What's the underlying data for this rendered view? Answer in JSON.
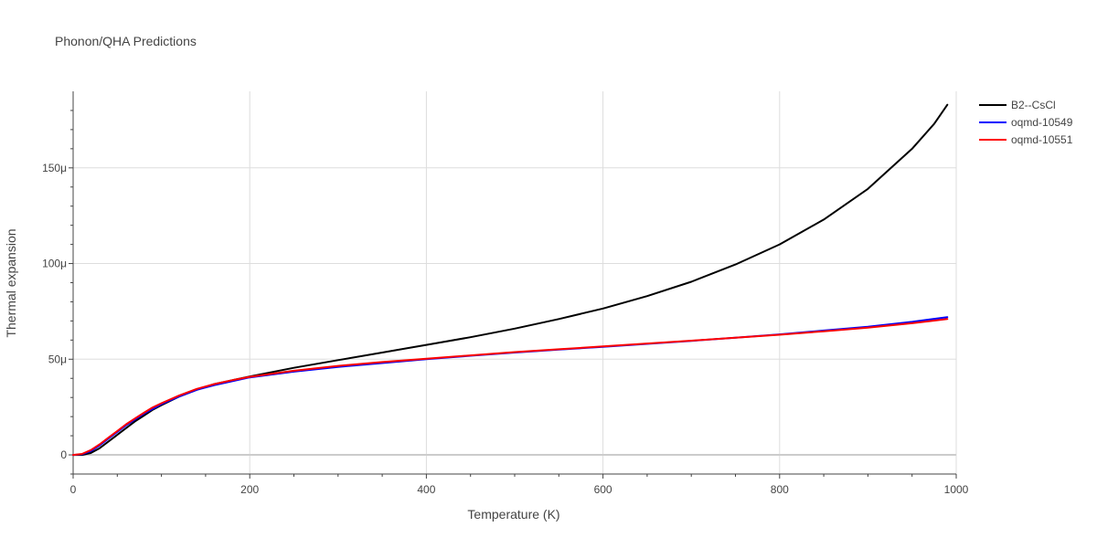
{
  "chart_data": {
    "type": "line",
    "title": "Phonon/QHA Predictions",
    "xlabel": "Temperature (K)",
    "ylabel": "Thermal expansion",
    "xlim": [
      0,
      1000
    ],
    "ylim": [
      -10,
      190
    ],
    "x_ticks": [
      0,
      200,
      400,
      600,
      800,
      1000
    ],
    "x_tick_labels": [
      "0",
      "200",
      "400",
      "600",
      "800",
      "1000"
    ],
    "y_ticks": [
      0,
      50,
      100,
      150
    ],
    "y_tick_labels": [
      "0",
      "50μ",
      "100μ",
      "150μ"
    ],
    "legend_position": "top-right",
    "series": [
      {
        "name": "B2--CsCl",
        "color": "#000000",
        "x": [
          0,
          10,
          20,
          30,
          40,
          50,
          60,
          70,
          80,
          90,
          100,
          120,
          140,
          160,
          180,
          200,
          250,
          300,
          350,
          400,
          450,
          500,
          550,
          600,
          650,
          700,
          750,
          800,
          850,
          900,
          950,
          975,
          990
        ],
        "y": [
          0,
          0,
          1,
          3.5,
          7,
          10.5,
          14,
          17.5,
          20.5,
          23.5,
          26,
          30.5,
          34,
          37,
          39,
          41,
          45.5,
          49.5,
          53.5,
          57.5,
          61.5,
          66,
          71,
          76.5,
          83,
          90.5,
          99.5,
          110,
          123,
          139,
          160,
          173,
          183
        ]
      },
      {
        "name": "oqmd-10549",
        "color": "#0000ff",
        "x": [
          0,
          10,
          20,
          30,
          40,
          50,
          60,
          70,
          80,
          90,
          100,
          120,
          140,
          160,
          180,
          200,
          250,
          300,
          350,
          400,
          450,
          500,
          550,
          600,
          650,
          700,
          750,
          800,
          850,
          900,
          950,
          990
        ],
        "y": [
          0,
          0.3,
          2,
          5,
          8.5,
          12,
          15.5,
          18.5,
          21.5,
          24,
          26.5,
          30.5,
          34,
          36.5,
          38.5,
          40.5,
          43.5,
          46,
          48,
          50,
          51.8,
          53.5,
          55,
          56.5,
          58,
          59.6,
          61.2,
          63,
          65,
          67,
          69.5,
          72
        ]
      },
      {
        "name": "oqmd-10551",
        "color": "#ff0000",
        "x": [
          0,
          10,
          20,
          30,
          40,
          50,
          60,
          70,
          80,
          90,
          100,
          120,
          140,
          160,
          180,
          200,
          250,
          300,
          350,
          400,
          450,
          500,
          550,
          600,
          650,
          700,
          750,
          800,
          850,
          900,
          950,
          990
        ],
        "y": [
          0,
          0.5,
          2.5,
          5.5,
          9,
          12.5,
          16,
          19,
          22,
          24.8,
          27,
          31,
          34.5,
          37,
          39,
          40.8,
          44,
          46.5,
          48.5,
          50.3,
          52,
          53.7,
          55.2,
          56.7,
          58.2,
          59.7,
          61.2,
          62.8,
          64.6,
          66.5,
          68.8,
          71
        ]
      }
    ]
  }
}
